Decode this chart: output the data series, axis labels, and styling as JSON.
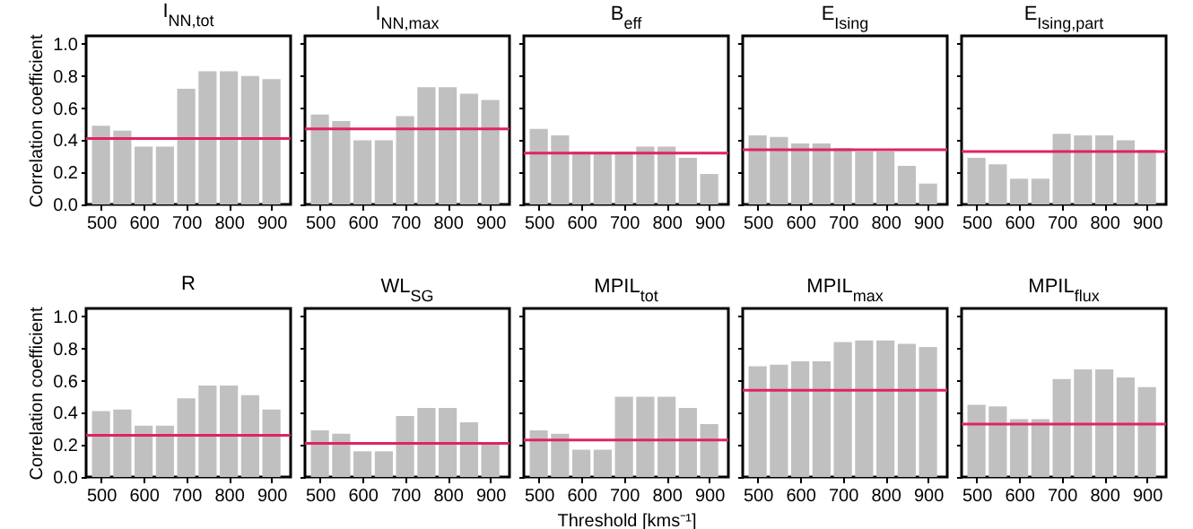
{
  "chart_data": [
    {
      "type": "bar",
      "title": "I$_{NN,tot}$",
      "ylabel": "Correlation coefficient",
      "x": [
        500,
        550,
        600,
        650,
        700,
        750,
        800,
        850,
        900
      ],
      "values": [
        0.49,
        0.46,
        0.36,
        0.36,
        0.72,
        0.83,
        0.83,
        0.8,
        0.78
      ],
      "color": "#c0c0c0",
      "xlim": [
        465,
        945
      ],
      "xticks": [
        500,
        600,
        700,
        800,
        900
      ],
      "ylim": [
        0,
        1.05
      ],
      "yticks": [
        {
          "value": 0,
          "label": "0.0"
        },
        {
          "value": 0.2,
          "label": "0.2"
        },
        {
          "value": 0.4,
          "label": "0.4"
        },
        {
          "value": 0.6,
          "label": "0.6"
        },
        {
          "value": 0.8,
          "label": "0.8"
        },
        {
          "value": 1,
          "label": "1.0"
        }
      ],
      "ref_lines": [
        {
          "axis": "y",
          "value": 0.41,
          "color": "#e0245e"
        }
      ]
    },
    {
      "type": "bar",
      "title": "I$_{NN,max}$",
      "x": [
        500,
        550,
        600,
        650,
        700,
        750,
        800,
        850,
        900
      ],
      "values": [
        0.56,
        0.52,
        0.4,
        0.4,
        0.55,
        0.73,
        0.73,
        0.69,
        0.65
      ],
      "color": "#c0c0c0",
      "xlim": [
        465,
        945
      ],
      "xticks": [
        500,
        600,
        700,
        800,
        900
      ],
      "ylim": [
        0,
        1.05
      ],
      "yticks": [
        0,
        0.2,
        0.4,
        0.6,
        0.8,
        1
      ],
      "tick_labels": "x",
      "ref_lines": [
        {
          "axis": "y",
          "value": 0.47,
          "color": "#e0245e"
        }
      ]
    },
    {
      "type": "bar",
      "title": "B$_{eff}$",
      "x": [
        500,
        550,
        600,
        650,
        700,
        750,
        800,
        850,
        900
      ],
      "values": [
        0.47,
        0.43,
        0.33,
        0.33,
        0.33,
        0.36,
        0.36,
        0.29,
        0.19
      ],
      "color": "#c0c0c0",
      "xlim": [
        465,
        945
      ],
      "xticks": [
        500,
        600,
        700,
        800,
        900
      ],
      "ylim": [
        0,
        1.05
      ],
      "yticks": [
        0,
        0.2,
        0.4,
        0.6,
        0.8,
        1
      ],
      "tick_labels": "x",
      "ref_lines": [
        {
          "axis": "y",
          "value": 0.32,
          "color": "#e0245e"
        }
      ]
    },
    {
      "type": "bar",
      "title": "E$_{Ising}$",
      "x": [
        500,
        550,
        600,
        650,
        700,
        750,
        800,
        850,
        900
      ],
      "values": [
        0.43,
        0.42,
        0.38,
        0.38,
        0.35,
        0.33,
        0.33,
        0.24,
        0.13
      ],
      "color": "#c0c0c0",
      "xlim": [
        465,
        945
      ],
      "xticks": [
        500,
        600,
        700,
        800,
        900
      ],
      "ylim": [
        0,
        1.05
      ],
      "yticks": [
        0,
        0.2,
        0.4,
        0.6,
        0.8,
        1
      ],
      "tick_labels": "x",
      "ref_lines": [
        {
          "axis": "y",
          "value": 0.34,
          "color": "#e0245e"
        }
      ]
    },
    {
      "type": "bar",
      "title": "E$_{Ising,part}$",
      "x": [
        500,
        550,
        600,
        650,
        700,
        750,
        800,
        850,
        900
      ],
      "values": [
        0.29,
        0.25,
        0.16,
        0.16,
        0.44,
        0.43,
        0.43,
        0.4,
        0.34
      ],
      "color": "#c0c0c0",
      "xlim": [
        465,
        945
      ],
      "xticks": [
        500,
        600,
        700,
        800,
        900
      ],
      "ylim": [
        0,
        1.05
      ],
      "yticks": [
        0,
        0.2,
        0.4,
        0.6,
        0.8,
        1
      ],
      "tick_labels": "x",
      "ref_lines": [
        {
          "axis": "y",
          "value": 0.33,
          "color": "#e0245e"
        }
      ]
    },
    {
      "type": "bar",
      "title": "R",
      "ylabel": "Correlation coefficient",
      "x": [
        500,
        550,
        600,
        650,
        700,
        750,
        800,
        850,
        900
      ],
      "values": [
        0.41,
        0.42,
        0.32,
        0.32,
        0.49,
        0.57,
        0.57,
        0.51,
        0.42
      ],
      "color": "#c0c0c0",
      "xlim": [
        465,
        945
      ],
      "xticks": [
        500,
        600,
        700,
        800,
        900
      ],
      "ylim": [
        0,
        1.05
      ],
      "yticks": [
        {
          "value": 0,
          "label": "0.0"
        },
        {
          "value": 0.2,
          "label": "0.2"
        },
        {
          "value": 0.4,
          "label": "0.4"
        },
        {
          "value": 0.6,
          "label": "0.6"
        },
        {
          "value": 0.8,
          "label": "0.8"
        },
        {
          "value": 1,
          "label": "1.0"
        }
      ],
      "ref_lines": [
        {
          "axis": "y",
          "value": 0.26,
          "color": "#e0245e"
        }
      ]
    },
    {
      "type": "bar",
      "title": "WL$_{SG}$",
      "x": [
        500,
        550,
        600,
        650,
        700,
        750,
        800,
        850,
        900
      ],
      "values": [
        0.29,
        0.27,
        0.16,
        0.16,
        0.38,
        0.43,
        0.43,
        0.34,
        0.21
      ],
      "color": "#c0c0c0",
      "xlim": [
        465,
        945
      ],
      "xticks": [
        500,
        600,
        700,
        800,
        900
      ],
      "ylim": [
        0,
        1.05
      ],
      "yticks": [
        0,
        0.2,
        0.4,
        0.6,
        0.8,
        1
      ],
      "tick_labels": "x",
      "ref_lines": [
        {
          "axis": "y",
          "value": 0.21,
          "color": "#e0245e"
        }
      ]
    },
    {
      "type": "bar",
      "title": "MPIL$_{tot}$",
      "xlabel": "Threshold [kms⁻¹]",
      "x": [
        500,
        550,
        600,
        650,
        700,
        750,
        800,
        850,
        900
      ],
      "values": [
        0.29,
        0.27,
        0.17,
        0.17,
        0.5,
        0.5,
        0.5,
        0.43,
        0.33
      ],
      "color": "#c0c0c0",
      "xlim": [
        465,
        945
      ],
      "xticks": [
        500,
        600,
        700,
        800,
        900
      ],
      "ylim": [
        0,
        1.05
      ],
      "yticks": [
        0,
        0.2,
        0.4,
        0.6,
        0.8,
        1
      ],
      "tick_labels": "x",
      "ref_lines": [
        {
          "axis": "y",
          "value": 0.23,
          "color": "#e0245e"
        }
      ]
    },
    {
      "type": "bar",
      "title": "MPIL$_{max}$",
      "x": [
        500,
        550,
        600,
        650,
        700,
        750,
        800,
        850,
        900
      ],
      "values": [
        0.69,
        0.7,
        0.72,
        0.72,
        0.84,
        0.85,
        0.85,
        0.83,
        0.81
      ],
      "color": "#c0c0c0",
      "xlim": [
        465,
        945
      ],
      "xticks": [
        500,
        600,
        700,
        800,
        900
      ],
      "ylim": [
        0,
        1.05
      ],
      "yticks": [
        0,
        0.2,
        0.4,
        0.6,
        0.8,
        1
      ],
      "tick_labels": "x",
      "ref_lines": [
        {
          "axis": "y",
          "value": 0.54,
          "color": "#e0245e"
        }
      ]
    },
    {
      "type": "bar",
      "title": "MPIL$_{flux}$",
      "x": [
        500,
        550,
        600,
        650,
        700,
        750,
        800,
        850,
        900
      ],
      "values": [
        0.45,
        0.44,
        0.36,
        0.36,
        0.61,
        0.67,
        0.67,
        0.62,
        0.56
      ],
      "color": "#c0c0c0",
      "xlim": [
        465,
        945
      ],
      "xticks": [
        500,
        600,
        700,
        800,
        900
      ],
      "ylim": [
        0,
        1.05
      ],
      "yticks": [
        0,
        0.2,
        0.4,
        0.6,
        0.8,
        1
      ],
      "tick_labels": "x",
      "ref_lines": [
        {
          "axis": "y",
          "value": 0.33,
          "color": "#e0245e"
        }
      ]
    }
  ]
}
